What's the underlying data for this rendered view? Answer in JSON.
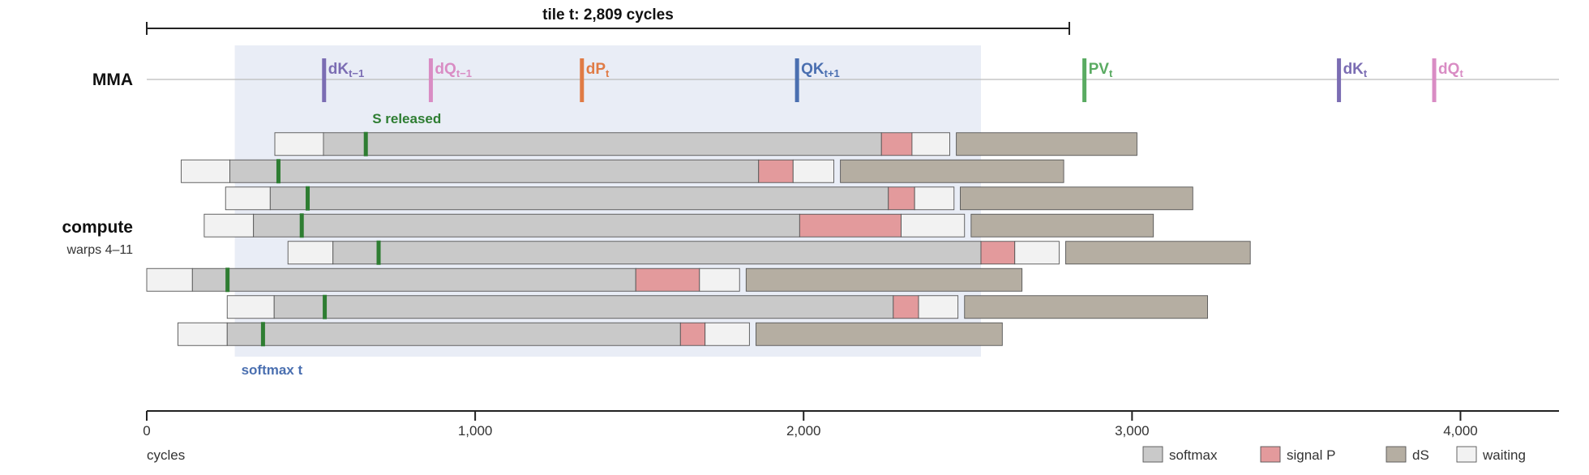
{
  "chart_data": {
    "type": "gantt",
    "title": "",
    "span_label": "tile t: 2,809 cycles",
    "span": [
      0,
      2809
    ],
    "xlim": [
      0,
      4300
    ],
    "xlabel": "cycles",
    "x_ticks": [
      0,
      1000,
      2000,
      3000,
      4000
    ],
    "x_tick_labels": [
      "0",
      "1,000",
      "2,000",
      "3,000",
      "4,000"
    ],
    "mma": {
      "label": "MMA",
      "events": [
        {
          "base": "dK",
          "sub": "t−1",
          "x": 540,
          "color": "#7b6db3"
        },
        {
          "base": "dQ",
          "sub": "t−1",
          "x": 865,
          "color": "#d98cc4"
        },
        {
          "base": "dP",
          "sub": "t",
          "x": 1325,
          "color": "#e07b45"
        },
        {
          "base": "QK",
          "sub": "t+1",
          "x": 1980,
          "color": "#4a6fb0"
        },
        {
          "base": "PV",
          "sub": "t",
          "x": 2855,
          "color": "#5aab62"
        },
        {
          "base": "dK",
          "sub": "t",
          "x": 3630,
          "color": "#7b6db3"
        },
        {
          "base": "dQ",
          "sub": "t",
          "x": 3920,
          "color": "#d98cc4"
        }
      ]
    },
    "compute": {
      "label": "compute",
      "sublabel": "warps 4–11",
      "highlight": [
        268,
        2540
      ],
      "highlight_label": "softmax t",
      "release_label": "S released",
      "rows": [
        {
          "wait1": [
            390,
            538
          ],
          "softmax": [
            538,
            2237
          ],
          "signal": [
            2237,
            2330
          ],
          "wait2": [
            2330,
            2445
          ],
          "ds": [
            2465,
            3015
          ],
          "release": 667
        },
        {
          "wait1": [
            105,
            253
          ],
          "softmax": [
            253,
            1863
          ],
          "signal": [
            1863,
            1968
          ],
          "wait2": [
            1968,
            2092
          ],
          "ds": [
            2112,
            2792
          ],
          "release": 401
        },
        {
          "wait1": [
            240,
            376
          ],
          "softmax": [
            376,
            2258
          ],
          "signal": [
            2258,
            2338
          ],
          "wait2": [
            2338,
            2458
          ],
          "ds": [
            2477,
            3185
          ],
          "release": 490
        },
        {
          "wait1": [
            175,
            325
          ],
          "softmax": [
            325,
            1988
          ],
          "signal": [
            1988,
            2297
          ],
          "wait2": [
            2297,
            2490
          ],
          "ds": [
            2510,
            3065
          ],
          "release": 472
        },
        {
          "wait1": [
            430,
            567
          ],
          "softmax": [
            567,
            2540
          ],
          "signal": [
            2540,
            2643
          ],
          "wait2": [
            2643,
            2778
          ],
          "ds": [
            2798,
            3360
          ],
          "release": 706
        },
        {
          "wait1": [
            0,
            139
          ],
          "softmax": [
            139,
            1489
          ],
          "signal": [
            1489,
            1683
          ],
          "wait2": [
            1683,
            1805
          ],
          "ds": [
            1825,
            2665
          ],
          "release": 246
        },
        {
          "wait1": [
            245,
            388
          ],
          "softmax": [
            388,
            2273
          ],
          "signal": [
            2273,
            2350
          ],
          "wait2": [
            2350,
            2470
          ],
          "ds": [
            2490,
            3230
          ],
          "release": 542
        },
        {
          "wait1": [
            95,
            245
          ],
          "softmax": [
            245,
            1625
          ],
          "signal": [
            1625,
            1700
          ],
          "wait2": [
            1700,
            1835
          ],
          "ds": [
            1855,
            2605
          ],
          "release": 354
        }
      ]
    },
    "legend": [
      {
        "label": "softmax",
        "color": "#c9c9c9"
      },
      {
        "label": "signal P",
        "color": "#e39a9c"
      },
      {
        "label": "dS",
        "color": "#b5aea2"
      },
      {
        "label": "waiting",
        "color": "#f2f2f2"
      }
    ],
    "colors": {
      "highlight": "#e9edf6",
      "release": "#2e7d32",
      "highlight_label": "#4a6fb0",
      "axis": "#222222",
      "bar_stroke": "#555555"
    }
  }
}
